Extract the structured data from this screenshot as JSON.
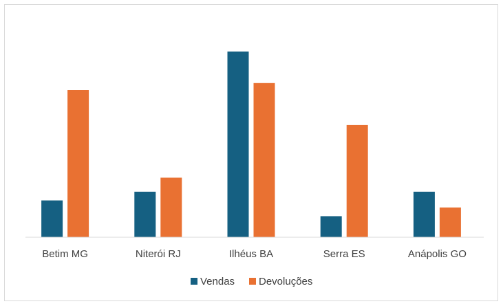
{
  "chart_data": {
    "type": "bar",
    "title": "",
    "xlabel": "",
    "ylabel": "",
    "categories": [
      "Betim MG",
      "Niterói RJ",
      "Ilhéus BA",
      "Serra ES",
      "Anápolis GO"
    ],
    "series": [
      {
        "name": "Vendas",
        "color": "#156082",
        "values": [
          21,
          26,
          106,
          12,
          26
        ]
      },
      {
        "name": "Devoluções",
        "color": "#E97132",
        "values": [
          84,
          34,
          88,
          64,
          17
        ]
      }
    ],
    "ylim": [
      0,
      115
    ],
    "grid": false,
    "legend": "bottom"
  }
}
